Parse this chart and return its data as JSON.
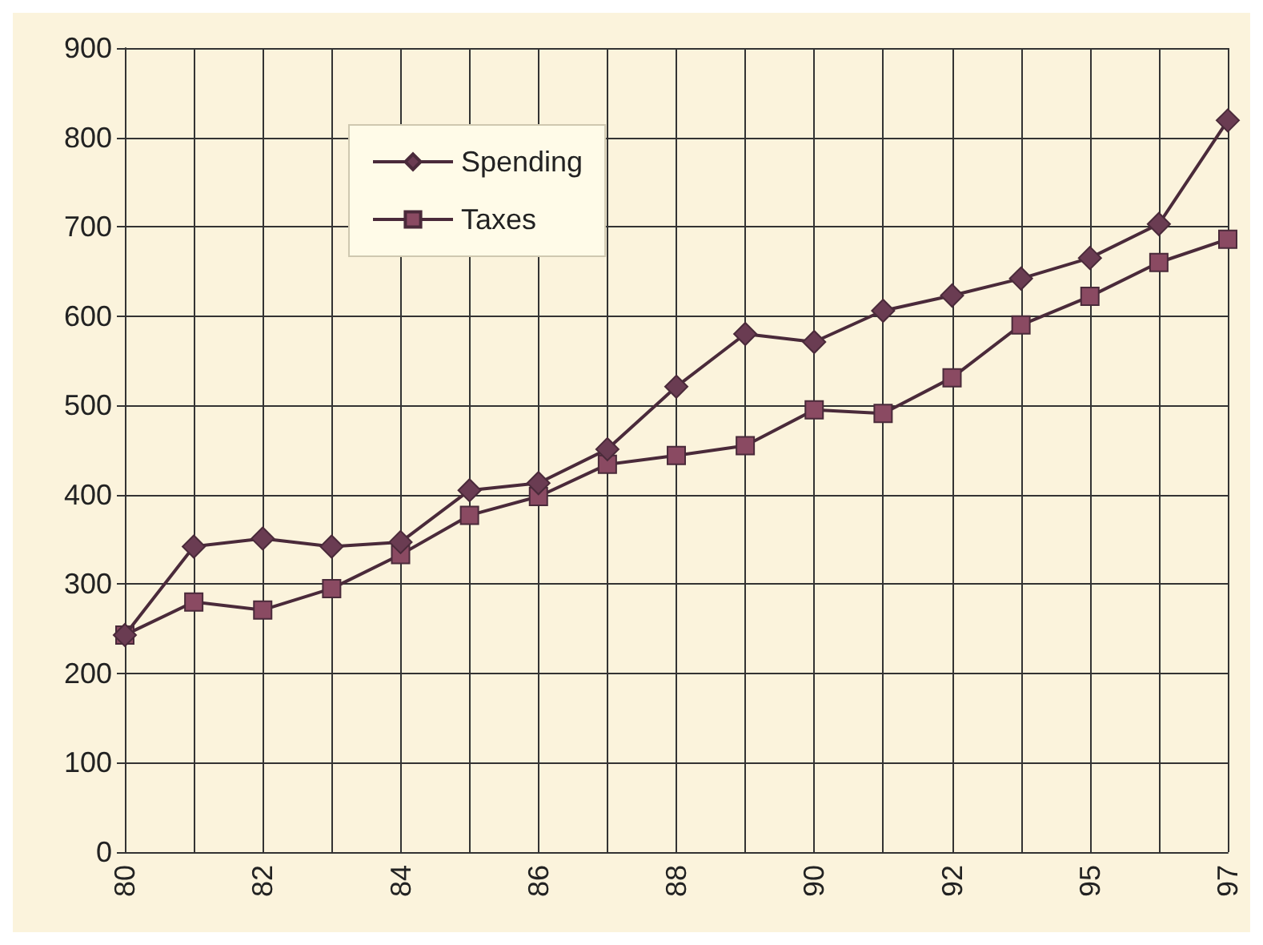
{
  "chart_data": {
    "type": "line",
    "categories": [
      "80",
      null,
      "82",
      null,
      "84",
      null,
      "86",
      null,
      "88",
      null,
      "90",
      null,
      "92",
      null,
      "95",
      null,
      "97"
    ],
    "series": [
      {
        "name": "Spending",
        "color": "#6a3c52",
        "marker": "diamond",
        "values": [
          243,
          342,
          351,
          342,
          347,
          405,
          413,
          451,
          521,
          580,
          571,
          606,
          623,
          642,
          665,
          703,
          819
        ]
      },
      {
        "name": "Taxes",
        "color": "#8a4a62",
        "marker": "square",
        "values": [
          243,
          280,
          271,
          295,
          333,
          377,
          398,
          434,
          444,
          455,
          495,
          491,
          531,
          590,
          622,
          660,
          686
        ]
      }
    ],
    "ylim": [
      0,
      900
    ],
    "yticks": [
      0,
      100,
      200,
      300,
      400,
      500,
      600,
      700,
      800,
      900
    ],
    "grid": true,
    "legend": "top left",
    "line_style": "solid"
  }
}
